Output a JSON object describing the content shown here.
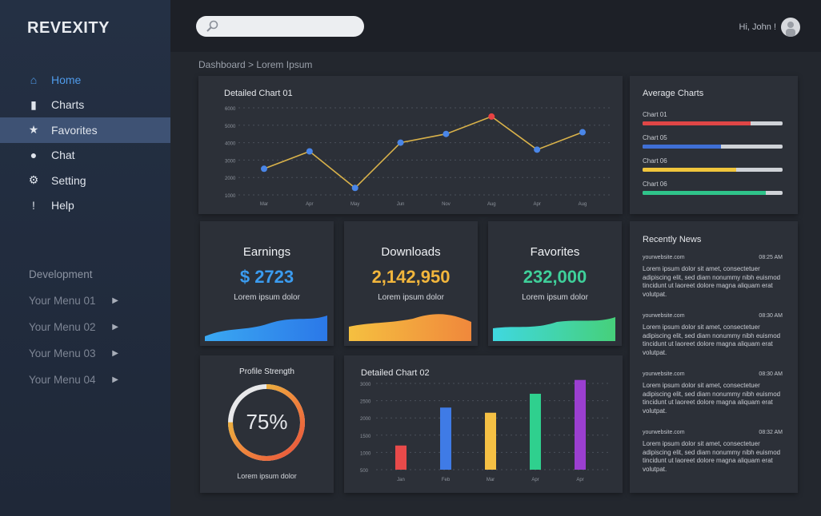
{
  "app": {
    "logo": "REVEXITY"
  },
  "sidebar": {
    "items": [
      {
        "label": "Home",
        "icon": "home-icon",
        "glyph": "⌂"
      },
      {
        "label": "Charts",
        "icon": "bar-chart-icon",
        "glyph": "▮"
      },
      {
        "label": "Favorites",
        "icon": "star-icon",
        "glyph": "★"
      },
      {
        "label": "Chat",
        "icon": "chat-icon",
        "glyph": "●"
      },
      {
        "label": "Setting",
        "icon": "gear-icon",
        "glyph": "⚙"
      },
      {
        "label": "Help",
        "icon": "alert-icon",
        "glyph": "!"
      }
    ],
    "section": "Development",
    "menus": [
      "Your Menu 01",
      "Your Menu 02",
      "Your Menu 03",
      "Your Menu 04"
    ],
    "arrow": "▶"
  },
  "header": {
    "search_placeholder": "",
    "greeting": "Hi, John !"
  },
  "breadcrumb": "Dashboard > Lorem Ipsum",
  "stats": [
    {
      "title": "Earnings",
      "value": "$ 2723",
      "sub": "Lorem ipsum dolor",
      "color": "#3b9cf0"
    },
    {
      "title": "Downloads",
      "value": "2,142,950",
      "sub": "Lorem ipsum dolor",
      "color": "#f2b63c"
    },
    {
      "title": "Favorites",
      "value": "232,000",
      "sub": "Lorem ipsum dolor",
      "color": "#3fd09a"
    }
  ],
  "profile": {
    "title": "Profile Strength",
    "value": "75%",
    "percent": 75,
    "sub": "Lorem ipsum dolor"
  },
  "average": {
    "title": "Average Charts",
    "items": [
      {
        "label": "Chart 01",
        "percent": 77,
        "color": "#e04646"
      },
      {
        "label": "Chart 05",
        "percent": 56,
        "color": "#3f6fd6"
      },
      {
        "label": "Chart 06",
        "percent": 67,
        "color": "#f0c53c"
      },
      {
        "label": "Chart 06",
        "percent": 88,
        "color": "#2fc38a"
      }
    ]
  },
  "news": {
    "title": "Recently News",
    "items": [
      {
        "source": "yourwebsite.com",
        "time": "08:25 AM",
        "text": "Lorem ipsum dolor sit amet, consectetuer adipiscing elit, sed diam nonummy nibh euismod tincidunt ut laoreet dolore magna aliquam erat volutpat."
      },
      {
        "source": "yourwebsite.com",
        "time": "08:30 AM",
        "text": "Lorem ipsum dolor sit amet, consectetuer adipiscing elit, sed diam nonummy nibh euismod tincidunt ut laoreet dolore magna aliquam erat volutpat."
      },
      {
        "source": "yourwebsite.com",
        "time": "08:30 AM",
        "text": "Lorem ipsum dolor sit amet, consectetuer adipiscing elit, sed diam nonummy nibh euismod tincidunt ut laoreet dolore magna aliquam erat volutpat."
      },
      {
        "source": "yourwebsite.com",
        "time": "08:32 AM",
        "text": "Lorem ipsum dolor sit amet, consectetuer adipiscing elit, sed diam nonummy nibh euismod tincidunt ut laoreet dolore magna aliquam erat volutpat."
      }
    ]
  },
  "chart_data": [
    {
      "type": "line",
      "title": "Detailed Chart 01",
      "categories": [
        "Mar",
        "Apr",
        "May",
        "Jun",
        "Nov",
        "Aug",
        "Apr",
        "Aug"
      ],
      "values": [
        2500,
        3500,
        1400,
        4000,
        4500,
        5500,
        3600,
        4600
      ],
      "highlight_index": 5,
      "yticks": [
        1000,
        2000,
        3000,
        4000,
        5000,
        6000
      ],
      "ylim": [
        1000,
        6000
      ],
      "line_color": "#d9b24a",
      "point_color": "#4a86e8",
      "highlight_color": "#e84242",
      "grid": true
    },
    {
      "type": "bar",
      "title": "Detailed Chart 02",
      "categories": [
        "Jan",
        "Feb",
        "Mar",
        "Apr",
        "Apr"
      ],
      "values": [
        1200,
        2300,
        2150,
        2700,
        3100
      ],
      "colors": [
        "#e84a4a",
        "#3f7be6",
        "#f5c044",
        "#2fd08e",
        "#9b3fd0"
      ],
      "yticks": [
        500,
        1000,
        1500,
        2000,
        2500,
        3000
      ],
      "ylim": [
        500,
        3000
      ],
      "grid": true
    }
  ]
}
